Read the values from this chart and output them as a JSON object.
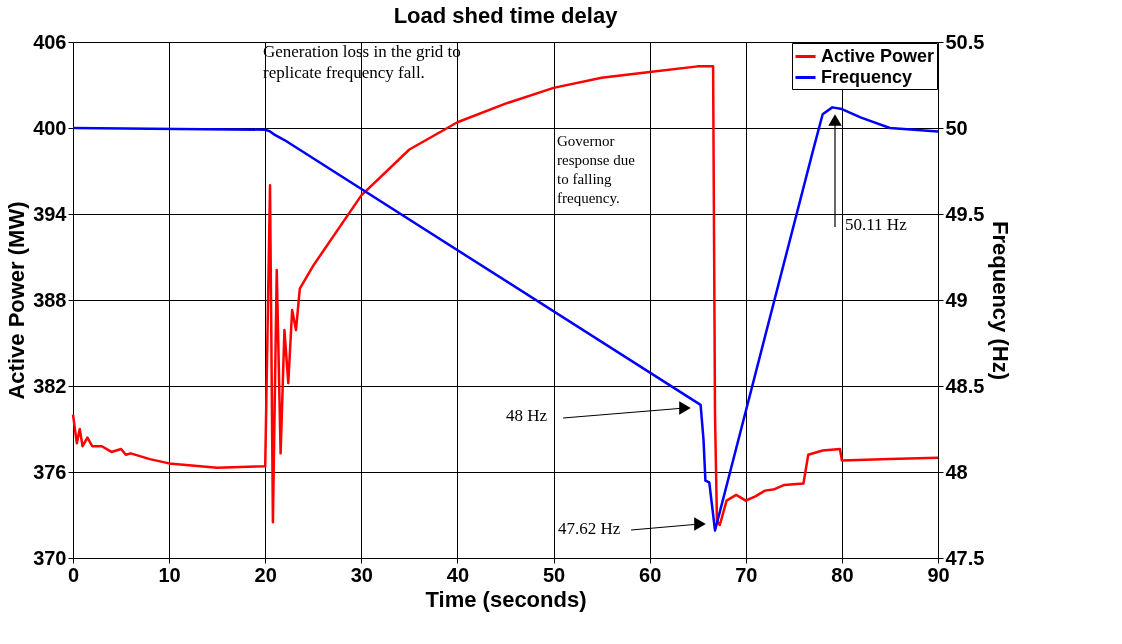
{
  "chart_data": {
    "type": "line",
    "title": "Load shed time delay",
    "xlabel": "Time (seconds)",
    "ylabel": "Active Power (MW)",
    "y2label": "Frequency (Hz)",
    "xlim": [
      0,
      90
    ],
    "xticks": [
      0,
      10,
      20,
      30,
      40,
      50,
      60,
      70,
      80,
      90
    ],
    "ylim": [
      370,
      406
    ],
    "yticks": [
      370,
      376,
      382,
      388,
      394,
      400,
      406
    ],
    "y2lim": [
      47.5,
      50.5
    ],
    "y2ticks": [
      47.5,
      48,
      48.5,
      49,
      49.5,
      50,
      50.5
    ],
    "grid": true,
    "legend": "top right",
    "line_style": "solid",
    "marker": "none",
    "series": [
      {
        "name": "Active Power",
        "color": "#ff0000",
        "x": [
          0,
          0.4,
          0.7,
          1,
          1.5,
          2,
          3,
          4,
          5,
          5.5,
          6,
          8,
          10,
          15,
          20,
          20.5,
          20.8,
          21.2,
          21.6,
          22,
          22.4,
          22.8,
          23.2,
          23.6,
          25,
          30,
          35,
          40,
          45,
          50,
          55,
          60,
          65,
          66.6,
          66.8,
          67,
          67.3,
          68,
          69,
          70,
          71,
          72,
          73,
          74,
          76,
          76.5,
          78,
          79.8,
          80,
          85,
          90
        ],
        "values": [
          380.0,
          378.0,
          379.0,
          377.8,
          378.4,
          377.8,
          377.8,
          377.4,
          377.6,
          377.2,
          377.3,
          376.9,
          376.6,
          376.3,
          376.4,
          396.0,
          372.5,
          390.1,
          377.3,
          385.9,
          382.2,
          387.3,
          385.9,
          388.8,
          390.4,
          395.3,
          398.5,
          400.4,
          401.7,
          402.8,
          403.5,
          403.9,
          404.3,
          404.3,
          380.0,
          372.6,
          372.3,
          374.0,
          374.4,
          374.0,
          374.3,
          374.7,
          374.8,
          375.1,
          375.2,
          377.2,
          377.5,
          377.6,
          376.8,
          376.9,
          377.0
        ]
      },
      {
        "name": "Frequency",
        "color": "#0000ff",
        "axis": "y2",
        "x": [
          0,
          20,
          20.5,
          21,
          22,
          65.3,
          65.6,
          65.8,
          66.2,
          66.8,
          77,
          78,
          79,
          80,
          82,
          85,
          90
        ],
        "values": [
          50.0,
          49.99,
          49.98,
          49.96,
          49.93,
          48.39,
          48.19,
          47.95,
          47.94,
          47.66,
          49.87,
          50.08,
          50.12,
          50.11,
          50.06,
          50.0,
          49.98
        ]
      }
    ],
    "annotations": [
      "Generation loss in the grid to\nreplicate frequency fall.",
      "Governor\nresponse due\nto falling\nfrequency.",
      "48 Hz",
      "47.62 Hz",
      "50.11 Hz"
    ]
  }
}
